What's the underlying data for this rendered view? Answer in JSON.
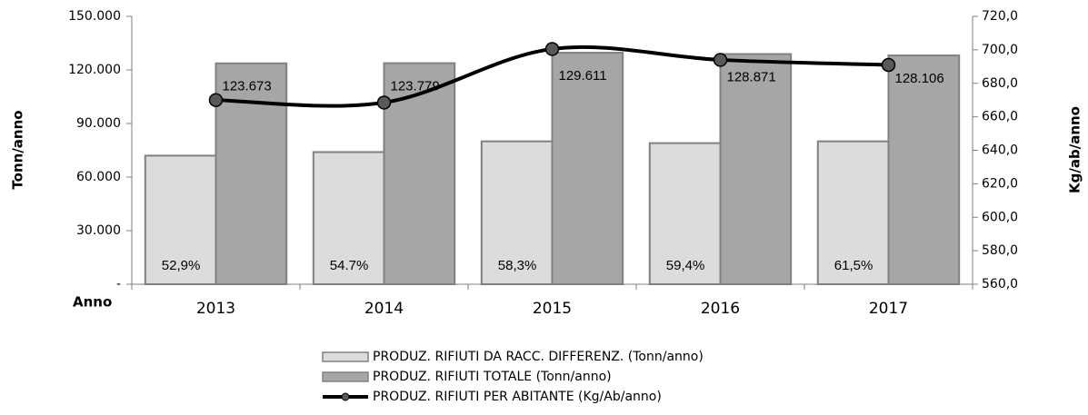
{
  "chart_data": {
    "type": "bar_line",
    "categories": [
      "2013",
      "2014",
      "2015",
      "2016",
      "2017"
    ],
    "x_axis_label": "Anno",
    "y_axis_label": "Tonn/anno",
    "y2_axis_label": "Kg/ab/anno",
    "series": [
      {
        "name": "PRODUZ. RIFIUTI DA RACC. DIFFERENZ. (Tonn/anno)",
        "color": "#dcdcdc",
        "values": [
          72000,
          74000,
          80000,
          79000,
          80000
        ]
      },
      {
        "name": "PRODUZ. RIFIUTI TOTALE (Tonn/anno)",
        "color": "#a6a6a6",
        "values": [
          123673,
          123779,
          129611,
          128871,
          128106
        ],
        "value_labels": [
          "123.673",
          "123.779",
          "129.611",
          "128.871",
          "128.106"
        ]
      },
      {
        "name": "PRODUZ. RIFIUTI PER ABITANTE (Kg/Ab/anno)",
        "color": "#000000",
        "axis": "y2",
        "type": "line",
        "values": [
          670,
          668.5,
          700.5,
          694,
          691
        ]
      }
    ],
    "annotations": [
      "52,9%",
      "54.7%",
      "58,3%",
      "59,4%",
      "61,5%"
    ],
    "ylim": [
      0,
      150000
    ],
    "yticks": [
      {
        "value": 0,
        "label": "-"
      },
      {
        "value": 30000,
        "label": "30.000"
      },
      {
        "value": 60000,
        "label": "60.000"
      },
      {
        "value": 90000,
        "label": "90.000"
      },
      {
        "value": 120000,
        "label": "120.000"
      },
      {
        "value": 150000,
        "label": "150.000"
      }
    ],
    "y2lim": [
      560,
      720
    ],
    "y2ticks": [
      {
        "value": 560,
        "label": "560,0"
      },
      {
        "value": 580,
        "label": "580,0"
      },
      {
        "value": 600,
        "label": "600,0"
      },
      {
        "value": 620,
        "label": "620,0"
      },
      {
        "value": 640,
        "label": "640,0"
      },
      {
        "value": 660,
        "label": "660,0"
      },
      {
        "value": 680,
        "label": "680,0"
      },
      {
        "value": 700,
        "label": "700,0"
      },
      {
        "value": 720,
        "label": "720,0"
      }
    ],
    "grid": false
  }
}
